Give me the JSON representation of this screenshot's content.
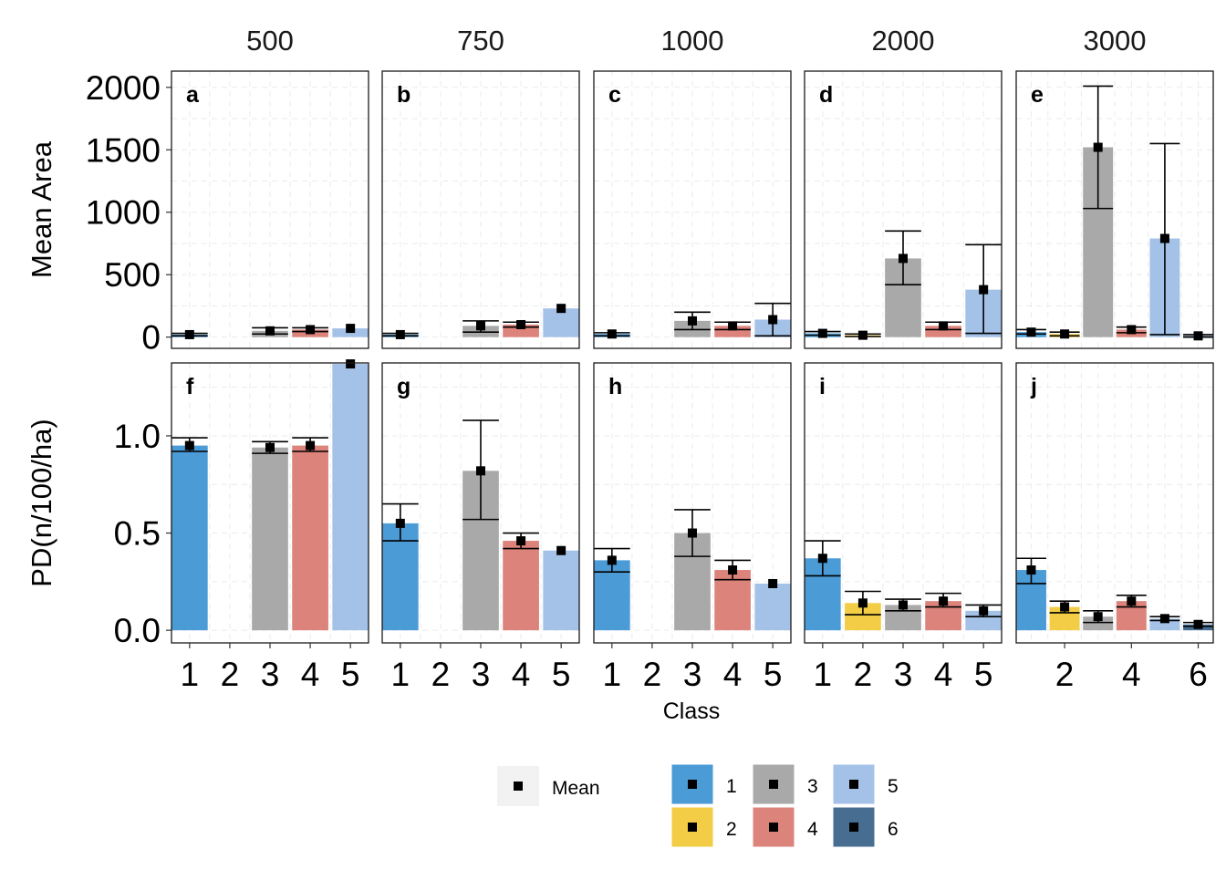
{
  "chart_data": {
    "type": "bar",
    "layout": "facet-grid",
    "facet_columns": [
      "500",
      "750",
      "1000",
      "2000",
      "3000"
    ],
    "xlabel": "Class",
    "colors": {
      "1": "#4b9bd6",
      "2": "#f2cd45",
      "3": "#a9a9a9",
      "4": "#dc837b",
      "5": "#a4c2e8",
      "6": "#476d90"
    },
    "rows": [
      {
        "ylabel": "Mean Area",
        "ylim": [
          -90,
          2130
        ],
        "yticks": [
          0,
          500,
          1000,
          1500,
          2000
        ],
        "tick_labels": [
          "0",
          "500",
          "1000",
          "1500",
          "2000"
        ],
        "panels": [
          {
            "tag": "a",
            "xlim": [
              0.55,
              5.45
            ],
            "xticks": [
              1,
              2,
              3,
              4,
              5
            ],
            "bars": [
              {
                "class": 1,
                "mean": 20,
                "low": 10,
                "high": 30
              },
              {
                "class": 3,
                "mean": 50,
                "low": 25,
                "high": 75
              },
              {
                "class": 4,
                "mean": 60,
                "low": 45,
                "high": 75
              },
              {
                "class": 5,
                "mean": 70,
                "low": null,
                "high": null
              }
            ]
          },
          {
            "tag": "b",
            "xlim": [
              0.55,
              5.45
            ],
            "xticks": [
              1,
              2,
              3,
              4,
              5
            ],
            "bars": [
              {
                "class": 1,
                "mean": 20,
                "low": 10,
                "high": 30
              },
              {
                "class": 3,
                "mean": 90,
                "low": 40,
                "high": 130
              },
              {
                "class": 4,
                "mean": 100,
                "low": 80,
                "high": 120
              },
              {
                "class": 5,
                "mean": 230,
                "low": null,
                "high": null
              }
            ]
          },
          {
            "tag": "c",
            "xlim": [
              0.55,
              5.45
            ],
            "xticks": [
              1,
              2,
              3,
              4,
              5
            ],
            "bars": [
              {
                "class": 1,
                "mean": 25,
                "low": 10,
                "high": 35
              },
              {
                "class": 3,
                "mean": 130,
                "low": 60,
                "high": 200
              },
              {
                "class": 4,
                "mean": 90,
                "low": 60,
                "high": 120
              },
              {
                "class": 5,
                "mean": 140,
                "low": 10,
                "high": 270
              }
            ]
          },
          {
            "tag": "d",
            "xlim": [
              0.55,
              5.45
            ],
            "xticks": [
              1,
              2,
              3,
              4,
              5
            ],
            "bars": [
              {
                "class": 1,
                "mean": 30,
                "low": 15,
                "high": 45
              },
              {
                "class": 2,
                "mean": 15,
                "low": 5,
                "high": 25
              },
              {
                "class": 3,
                "mean": 630,
                "low": 420,
                "high": 850
              },
              {
                "class": 4,
                "mean": 90,
                "low": 60,
                "high": 120
              },
              {
                "class": 5,
                "mean": 380,
                "low": 30,
                "high": 740
              }
            ]
          },
          {
            "tag": "e",
            "xlim": [
              0.55,
              6.45
            ],
            "xticks": [
              2,
              4,
              6
            ],
            "bars": [
              {
                "class": 1,
                "mean": 40,
                "low": 25,
                "high": 60
              },
              {
                "class": 2,
                "mean": 25,
                "low": 10,
                "high": 40
              },
              {
                "class": 3,
                "mean": 1520,
                "low": 1030,
                "high": 2010
              },
              {
                "class": 4,
                "mean": 60,
                "low": 35,
                "high": 80
              },
              {
                "class": 5,
                "mean": 790,
                "low": 20,
                "high": 1550
              },
              {
                "class": 6,
                "mean": 10,
                "low": 0,
                "high": 20
              }
            ]
          }
        ]
      },
      {
        "ylabel": "PD(n/100/ha)",
        "ylim": [
          -0.065,
          1.375
        ],
        "yticks": [
          0.0,
          0.5,
          1.0
        ],
        "tick_labels": [
          "0.0",
          "0.5",
          "1.0"
        ],
        "panels": [
          {
            "tag": "f",
            "xlim": [
              0.55,
              5.45
            ],
            "xticks": [
              1,
              2,
              3,
              4,
              5
            ],
            "bars": [
              {
                "class": 1,
                "mean": 0.95,
                "low": 0.92,
                "high": 0.99
              },
              {
                "class": 3,
                "mean": 0.94,
                "low": 0.91,
                "high": 0.97
              },
              {
                "class": 4,
                "mean": 0.95,
                "low": 0.92,
                "high": 0.99
              },
              {
                "class": 5,
                "mean": 1.37,
                "low": null,
                "high": null
              }
            ]
          },
          {
            "tag": "g",
            "xlim": [
              0.55,
              5.45
            ],
            "xticks": [
              1,
              2,
              3,
              4,
              5
            ],
            "bars": [
              {
                "class": 1,
                "mean": 0.55,
                "low": 0.46,
                "high": 0.65
              },
              {
                "class": 3,
                "mean": 0.82,
                "low": 0.57,
                "high": 1.08
              },
              {
                "class": 4,
                "mean": 0.46,
                "low": 0.42,
                "high": 0.5
              },
              {
                "class": 5,
                "mean": 0.41,
                "low": null,
                "high": null
              }
            ]
          },
          {
            "tag": "h",
            "xlim": [
              0.55,
              5.45
            ],
            "xticks": [
              1,
              2,
              3,
              4,
              5
            ],
            "bars": [
              {
                "class": 1,
                "mean": 0.36,
                "low": 0.3,
                "high": 0.42
              },
              {
                "class": 3,
                "mean": 0.5,
                "low": 0.38,
                "high": 0.62
              },
              {
                "class": 4,
                "mean": 0.31,
                "low": 0.26,
                "high": 0.36
              },
              {
                "class": 5,
                "mean": 0.24,
                "low": null,
                "high": null
              }
            ]
          },
          {
            "tag": "i",
            "xlim": [
              0.55,
              5.45
            ],
            "xticks": [
              1,
              2,
              3,
              4,
              5
            ],
            "bars": [
              {
                "class": 1,
                "mean": 0.37,
                "low": 0.28,
                "high": 0.46
              },
              {
                "class": 2,
                "mean": 0.14,
                "low": 0.08,
                "high": 0.2
              },
              {
                "class": 3,
                "mean": 0.13,
                "low": 0.1,
                "high": 0.16
              },
              {
                "class": 4,
                "mean": 0.15,
                "low": 0.12,
                "high": 0.19
              },
              {
                "class": 5,
                "mean": 0.1,
                "low": 0.07,
                "high": 0.13
              }
            ]
          },
          {
            "tag": "j",
            "xlim": [
              0.55,
              6.45
            ],
            "xticks": [
              2,
              4,
              6
            ],
            "bars": [
              {
                "class": 1,
                "mean": 0.31,
                "low": 0.24,
                "high": 0.37
              },
              {
                "class": 2,
                "mean": 0.12,
                "low": 0.09,
                "high": 0.15
              },
              {
                "class": 3,
                "mean": 0.07,
                "low": 0.04,
                "high": 0.1
              },
              {
                "class": 4,
                "mean": 0.15,
                "low": 0.12,
                "high": 0.18
              },
              {
                "class": 5,
                "mean": 0.06,
                "low": 0.05,
                "high": 0.07
              },
              {
                "class": 6,
                "mean": 0.03,
                "low": 0.02,
                "high": 0.04
              }
            ]
          }
        ]
      }
    ],
    "legend": {
      "placement": "bottom",
      "mean_label": "Mean",
      "class_items": [
        "1",
        "2",
        "3",
        "4",
        "5",
        "6"
      ]
    }
  }
}
